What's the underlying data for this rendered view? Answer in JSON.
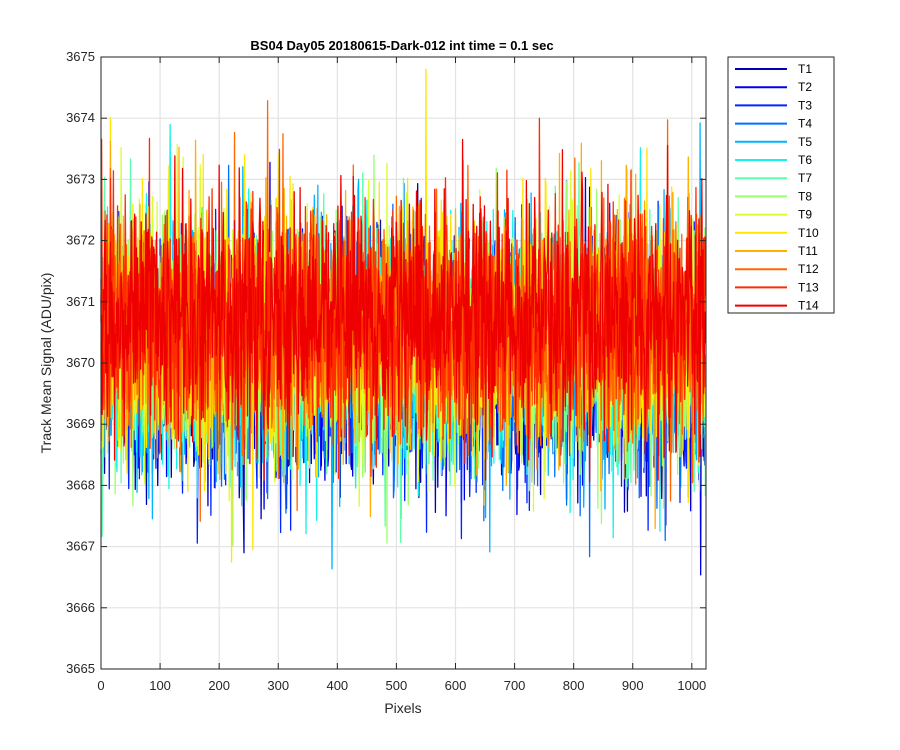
{
  "chart_data": {
    "type": "line",
    "title": "BS04 Day05 20180615-Dark-012 int time = 0.1 sec",
    "xlabel": "Pixels",
    "ylabel": "Track Mean Signal (ADU/pix)",
    "xlim": [
      0,
      1024
    ],
    "ylim": [
      3665,
      3675
    ],
    "xticks": [
      "0",
      "100",
      "200",
      "300",
      "400",
      "500",
      "600",
      "700",
      "800",
      "900",
      "1000"
    ],
    "yticks": [
      "3665",
      "3666",
      "3667",
      "3668",
      "3669",
      "3670",
      "3671",
      "3672",
      "3673",
      "3674",
      "3675"
    ],
    "grid": true,
    "legend_position": "outside-top-right",
    "n_points": 1024,
    "series": [
      {
        "name": "T1",
        "color": "#0000b4",
        "mean": 3670.0,
        "spread": 0.95
      },
      {
        "name": "T2",
        "color": "#0000ea",
        "mean": 3670.0,
        "spread": 0.95
      },
      {
        "name": "T3",
        "color": "#0026ff",
        "mean": 3670.05,
        "spread": 0.95
      },
      {
        "name": "T4",
        "color": "#0070ff",
        "mean": 3670.1,
        "spread": 0.95
      },
      {
        "name": "T5",
        "color": "#00b4ff",
        "mean": 3670.1,
        "spread": 0.95
      },
      {
        "name": "T6",
        "color": "#14f2ee",
        "mean": 3670.15,
        "spread": 0.95
      },
      {
        "name": "T7",
        "color": "#5effab",
        "mean": 3670.2,
        "spread": 0.95
      },
      {
        "name": "T8",
        "color": "#9cff6d",
        "mean": 3670.3,
        "spread": 0.95
      },
      {
        "name": "T9",
        "color": "#d8ff31",
        "mean": 3670.4,
        "spread": 0.95
      },
      {
        "name": "T10",
        "color": "#ffe600",
        "mean": 3670.5,
        "spread": 0.95
      },
      {
        "name": "T11",
        "color": "#ffb000",
        "mean": 3670.55,
        "spread": 0.95
      },
      {
        "name": "T12",
        "color": "#ff6800",
        "mean": 3670.6,
        "spread": 0.95
      },
      {
        "name": "T13",
        "color": "#ff2c00",
        "mean": 3670.7,
        "spread": 0.95
      },
      {
        "name": "T14",
        "color": "#ee0000",
        "mean": 3670.75,
        "spread": 0.95
      }
    ]
  }
}
